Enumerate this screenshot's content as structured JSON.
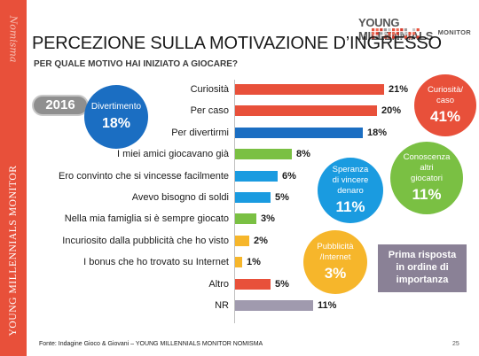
{
  "brand": {
    "side_script": "Nomisma",
    "side_vertical": "YOUNG MILLENNIALS MONITOR",
    "logo_line1": "YOUNG MILLENNIALS",
    "logo_line2": "MONITOR"
  },
  "title": "PERCEZIONE SULLA MOTIVAZIONE D’INGRESSO",
  "subtitle": "PER QUALE MOTIVO HAI INIZIATO A GIOCARE?",
  "year": "2016",
  "circles": {
    "divertimento": {
      "label": "Divertimento",
      "value": "18%"
    },
    "curiosita": {
      "label_line1": "Curiosità/",
      "label_line2": "caso",
      "value": "41%"
    },
    "conoscenza": {
      "label_line1": "Conoscenza",
      "label_line2": "altri",
      "label_line3": "giocatori",
      "value": "11%"
    },
    "speranza": {
      "label_line1": "Speranza",
      "label_line2": "di vincere",
      "label_line3": "denaro",
      "value": "11%"
    },
    "pubblicita": {
      "label_line1": "Pubblicità",
      "label_line2": "/Internet",
      "value": "3%"
    }
  },
  "note": {
    "line1": "Prima risposta",
    "line2": "in ordine di",
    "line3": "importanza"
  },
  "colors": {
    "red": "#e8503a",
    "blue": "#1b6ec2",
    "green": "#7ac043",
    "lightblue": "#1a9be0",
    "yellow": "#f6b62b",
    "gray": "#a09aae"
  },
  "chart_data": {
    "type": "bar",
    "orientation": "horizontal",
    "categories": [
      "Curiosità",
      "Per caso",
      "Per divertirmi",
      "I miei amici giocavano già",
      "Ero convinto che si vincesse facilmente",
      "Avevo bisogno di soldi",
      "Nella mia famiglia si è sempre giocato",
      "Incuriosito dalla pubblicità che ho visto",
      "I bonus che ho trovato su Internet",
      "Altro",
      "NR"
    ],
    "values": [
      21,
      20,
      18,
      8,
      6,
      5,
      3,
      2,
      1,
      5,
      11
    ],
    "value_labels": [
      "21%",
      "20%",
      "18%",
      "8%",
      "6%",
      "5%",
      "3%",
      "2%",
      "1%",
      "5%",
      "11%"
    ],
    "bar_colors": [
      "#e8503a",
      "#e8503a",
      "#1b6ec2",
      "#7ac043",
      "#1a9be0",
      "#1a9be0",
      "#7ac043",
      "#f6b62b",
      "#f6b62b",
      "#e8503a",
      "#a09aae"
    ],
    "xlim": [
      0,
      25
    ]
  },
  "footer": {
    "source": "Fonte: Indagine Gioco & Giovani – YOUNG MILLENNIALS MONITOR NOMISMA",
    "page_number": "25"
  }
}
